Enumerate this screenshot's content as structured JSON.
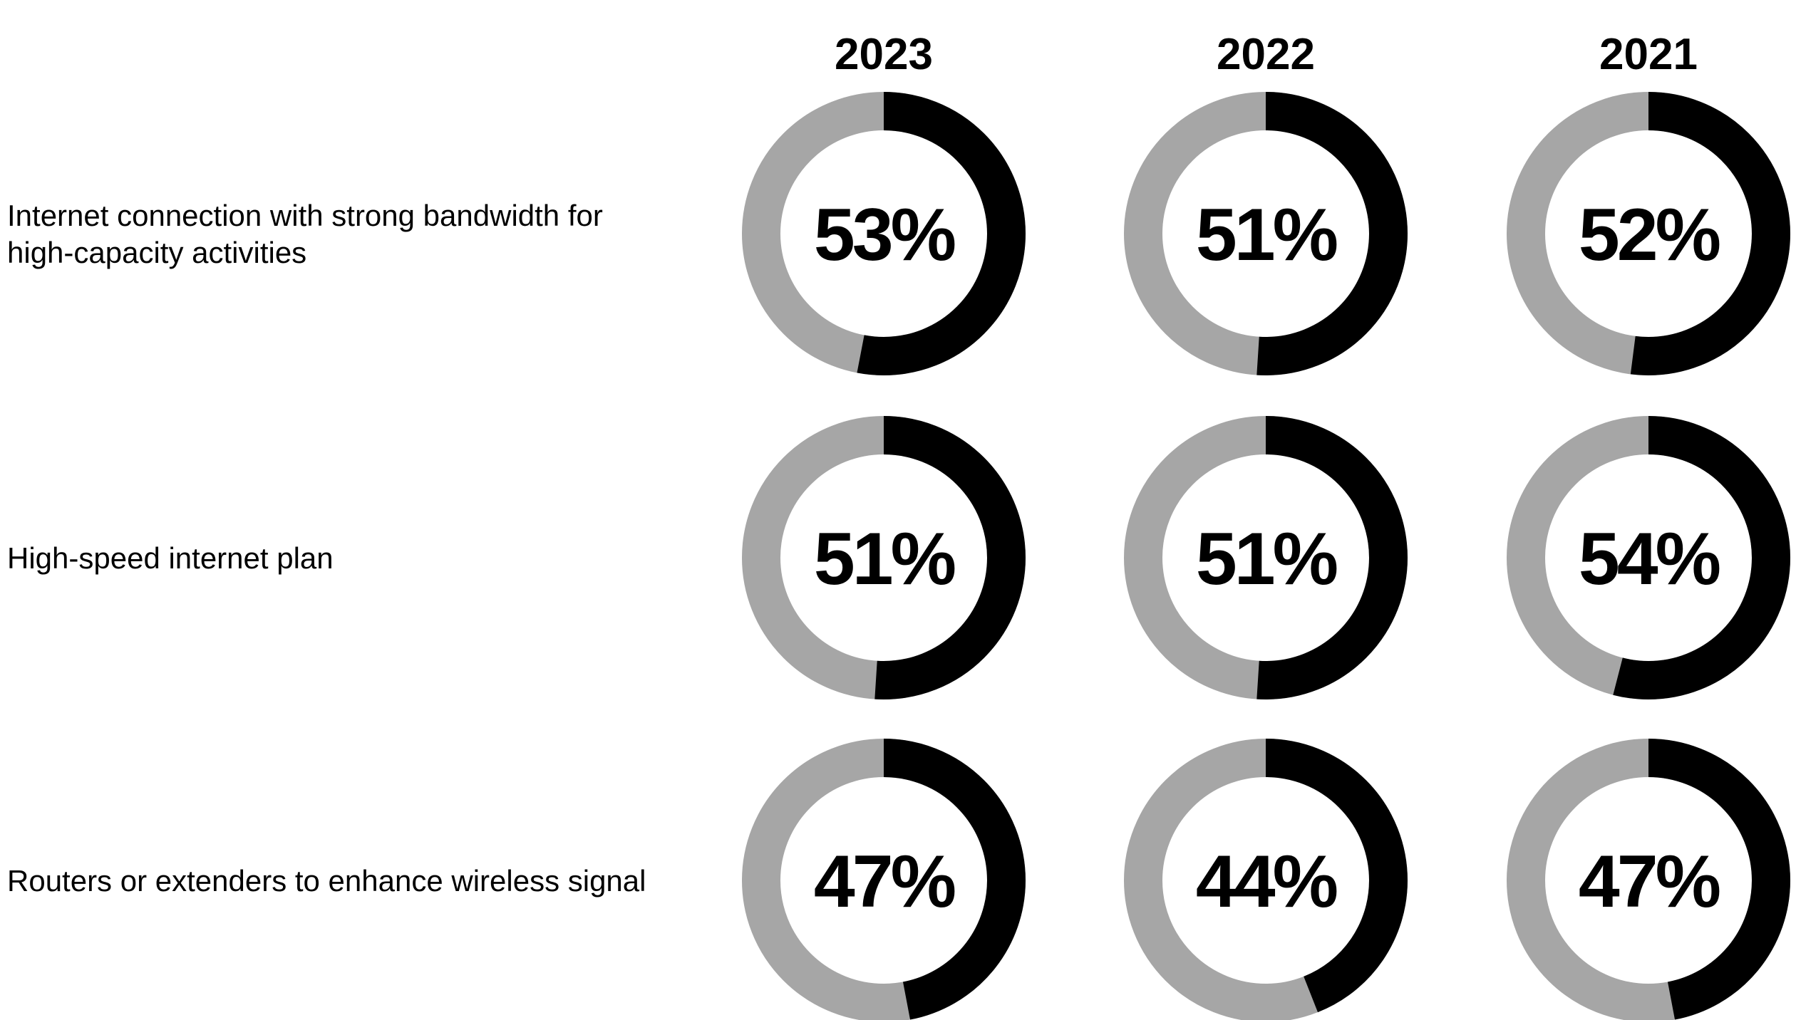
{
  "chart_data": {
    "type": "pie",
    "style": "donut-grid",
    "columns": [
      "2023",
      "2022",
      "2021"
    ],
    "rows": [
      {
        "label_lines": [
          "Internet connection with strong bandwidth for",
          "high-capacity activities"
        ],
        "values": [
          53,
          51,
          52
        ]
      },
      {
        "label_lines": [
          "High-speed internet plan"
        ],
        "values": [
          51,
          51,
          54
        ]
      },
      {
        "label_lines": [
          "Routers or extenders to enhance wireless signal"
        ],
        "values": [
          47,
          44,
          47
        ]
      }
    ],
    "value_suffix": "%",
    "max": 100,
    "colors": {
      "value": "#000000",
      "remainder": "#a6a6a6"
    }
  }
}
